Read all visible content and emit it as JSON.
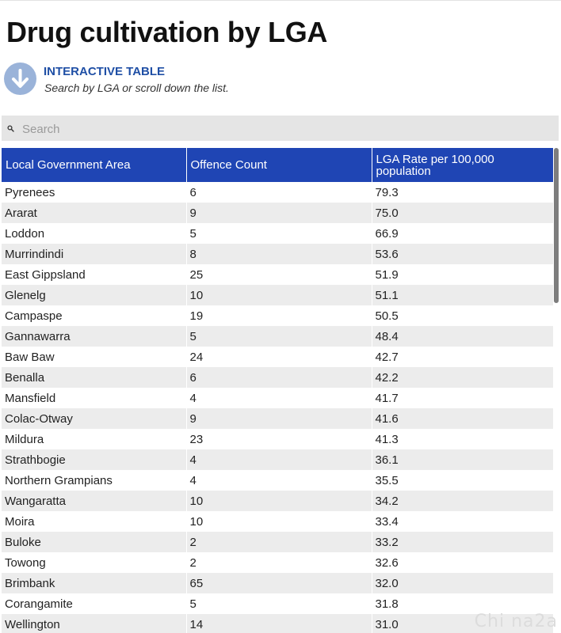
{
  "page": {
    "title": "Drug cultivation by LGA",
    "info_heading": "INTERACTIVE TABLE",
    "info_subtext": "Search by LGA or scroll down the list.",
    "info_icon": "down-arrow-circle-icon",
    "accent_color": "#1f45b4",
    "watermark": "Chi na2a"
  },
  "search": {
    "placeholder": "Search",
    "value": "",
    "icon": "search-icon"
  },
  "table": {
    "headers": [
      "Local Government Area",
      "Offence Count",
      "LGA Rate per 100,000 population"
    ],
    "rows": [
      [
        "Pyrenees",
        "6",
        "79.3"
      ],
      [
        "Ararat",
        "9",
        "75.0"
      ],
      [
        "Loddon",
        "5",
        "66.9"
      ],
      [
        "Murrindindi",
        "8",
        "53.6"
      ],
      [
        "East Gippsland",
        "25",
        "51.9"
      ],
      [
        "Glenelg",
        "10",
        "51.1"
      ],
      [
        "Campaspe",
        "19",
        "50.5"
      ],
      [
        "Gannawarra",
        "5",
        "48.4"
      ],
      [
        "Baw Baw",
        "24",
        "42.7"
      ],
      [
        "Benalla",
        "6",
        "42.2"
      ],
      [
        "Mansfield",
        "4",
        "41.7"
      ],
      [
        "Colac-Otway",
        "9",
        "41.6"
      ],
      [
        "Mildura",
        "23",
        "41.3"
      ],
      [
        "Strathbogie",
        "4",
        "36.1"
      ],
      [
        "Northern Grampians",
        "4",
        "35.5"
      ],
      [
        "Wangaratta",
        "10",
        "34.2"
      ],
      [
        "Moira",
        "10",
        "33.4"
      ],
      [
        "Buloke",
        "2",
        "33.2"
      ],
      [
        "Towong",
        "2",
        "32.6"
      ],
      [
        "Brimbank",
        "65",
        "32.0"
      ],
      [
        "Corangamite",
        "5",
        "31.8"
      ],
      [
        "Wellington",
        "14",
        "31.0"
      ]
    ]
  }
}
